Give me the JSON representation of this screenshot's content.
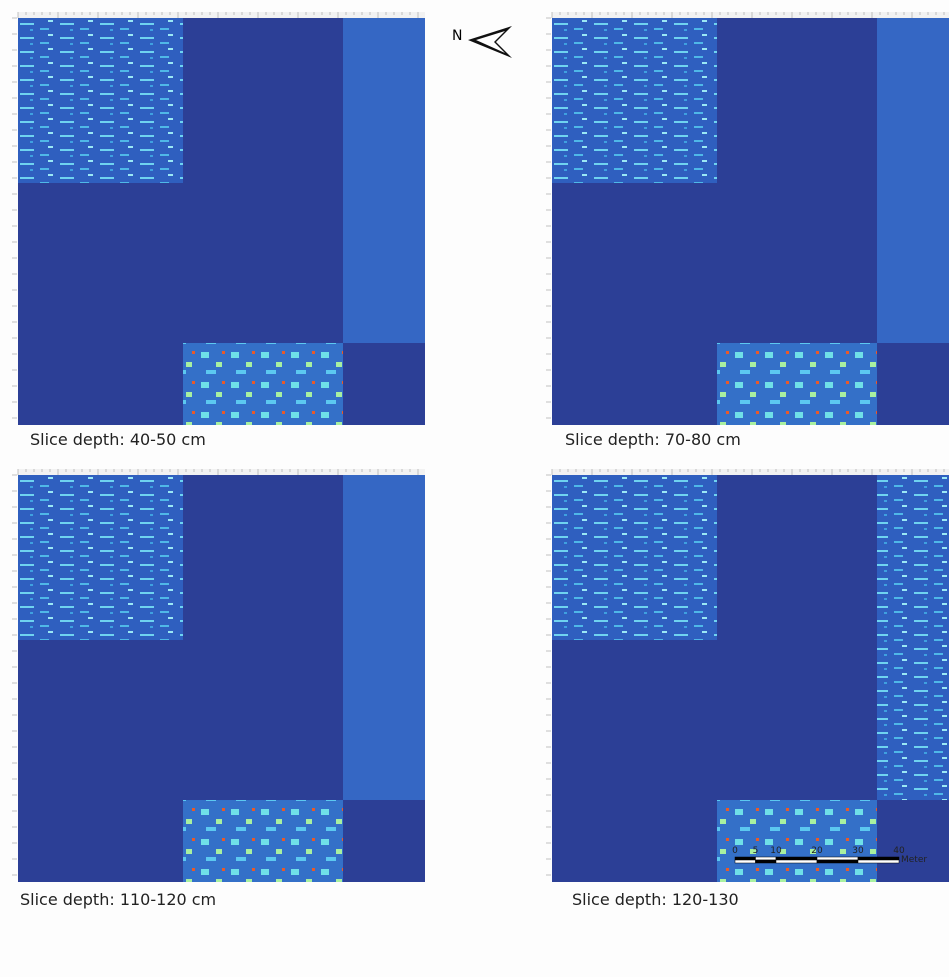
{
  "north_label": "N",
  "panels": [
    {
      "caption": "Slice depth: 40-50 cm"
    },
    {
      "caption": "Slice depth: 70-80 cm"
    },
    {
      "caption": "Slice depth: 110-120 cm"
    },
    {
      "caption": "Slice depth: 120-130"
    }
  ],
  "scale_bar": {
    "ticks": [
      0,
      5,
      10,
      20,
      30,
      40
    ],
    "unit": "Meter"
  }
}
